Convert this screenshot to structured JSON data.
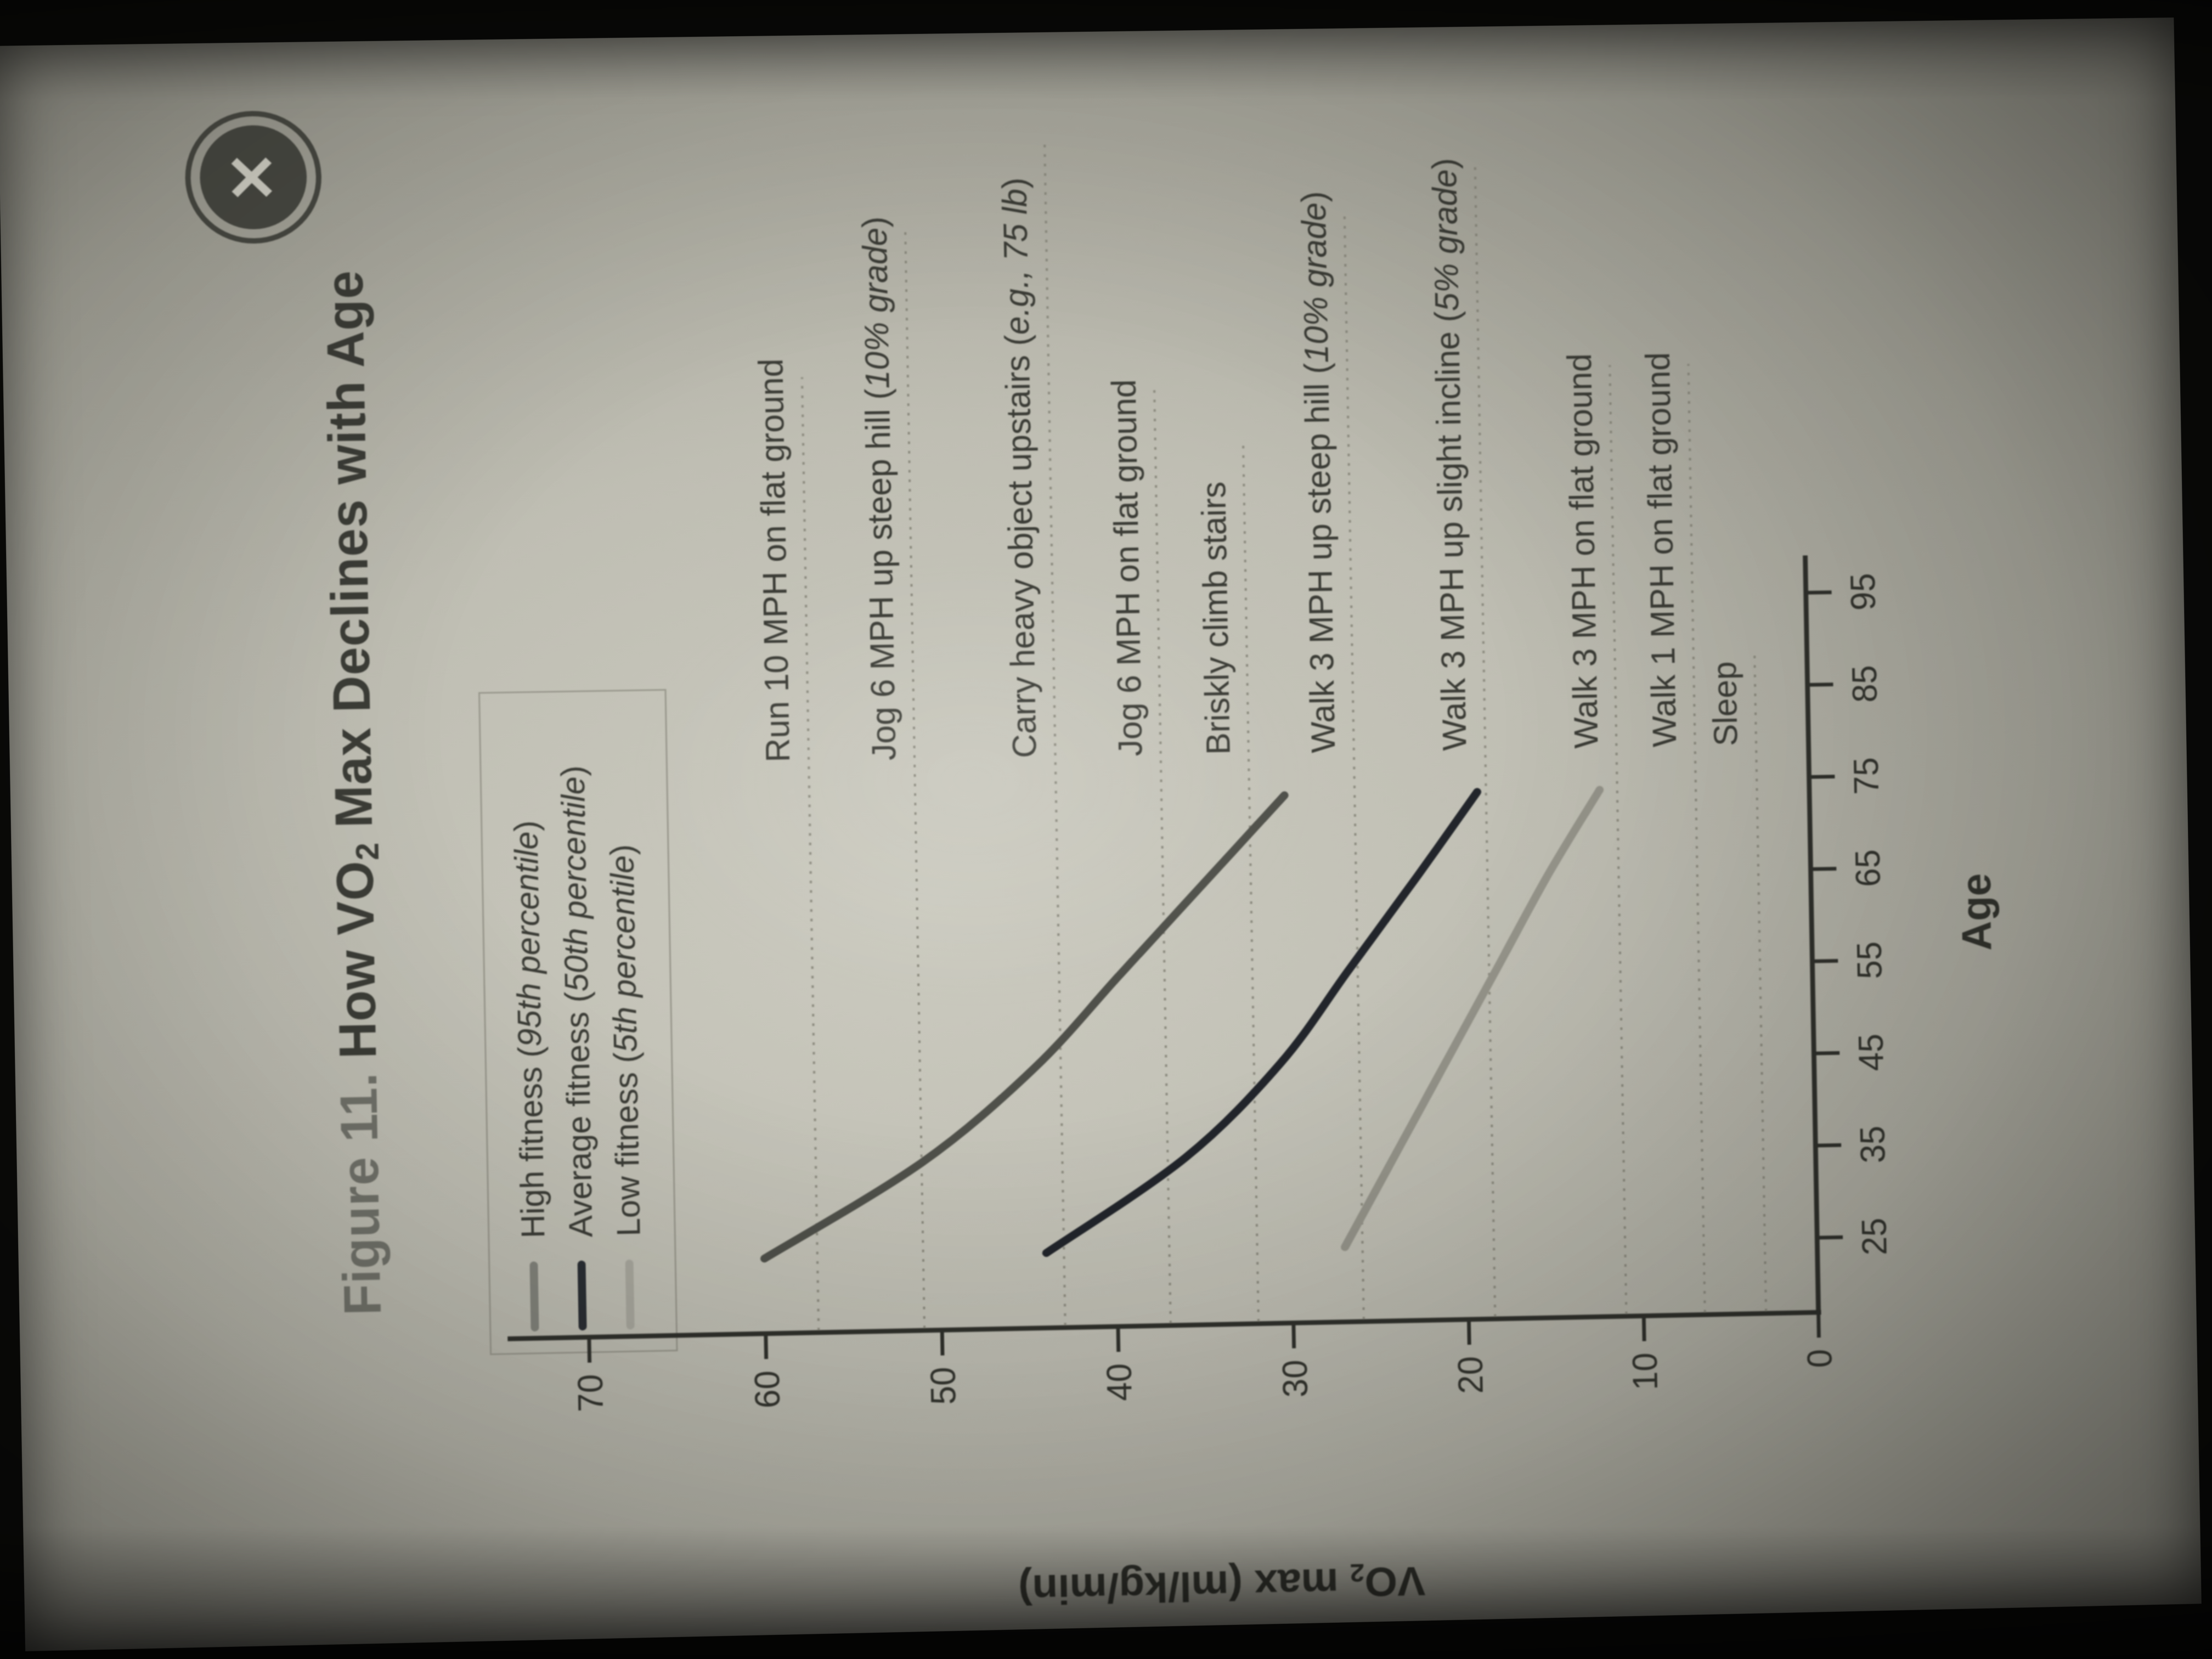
{
  "ui": {
    "close_glyph": "✕"
  },
  "title": {
    "prefix": "Figure 11.",
    "main_pre": "How VO",
    "sub": "2",
    "main_post": " Max Declines with Age"
  },
  "legend": {
    "items": [
      {
        "label": "High fitness (95th percentile)",
        "swatch_color": "#82837b"
      },
      {
        "label": "Average fitness (50th percentile)",
        "swatch_color": "#2b2f34"
      },
      {
        "label": "Low fitness (5th percentile)",
        "swatch_color": "#a8a79d"
      }
    ]
  },
  "axis": {
    "y_pre": "VO",
    "y_sub": "2",
    "y_post": " max (ml/kg/min)",
    "x_label": "Age"
  },
  "chart_data": {
    "type": "line",
    "title": "Figure 11. How VO2 Max Declines with Age",
    "xlabel": "Age",
    "ylabel": "VO2 max (ml/kg/min)",
    "xlim": [
      20,
      99
    ],
    "ylim": [
      0,
      70
    ],
    "xticks": [
      25,
      35,
      45,
      55,
      65,
      75,
      85,
      95
    ],
    "yticks": [
      0,
      10,
      20,
      30,
      40,
      50,
      60,
      70
    ],
    "grid": false,
    "legend_position": "top-left",
    "x": [
      25,
      35,
      45,
      55,
      65,
      74
    ],
    "series": [
      {
        "name": "High fitness (95th percentile)",
        "color": "#4f504a",
        "values": [
          60,
          51,
          44.5,
          39.5,
          34.5,
          30
        ]
      },
      {
        "name": "Average fitness (50th percentile)",
        "color": "#22252b",
        "values": [
          44,
          36,
          30.5,
          26.5,
          22.5,
          19
        ]
      },
      {
        "name": "Low fitness (5th percentile)",
        "color": "#95948a",
        "values": [
          27,
          24,
          21,
          18,
          15,
          12
        ]
      }
    ],
    "reference_lines": [
      {
        "label": "Run 10 MPH on flat ground",
        "value": 57
      },
      {
        "label": "Jog 6 MPH up steep hill (10% grade)",
        "value": 51
      },
      {
        "label": "Carry heavy object upstairs (e.g., 75 lb)",
        "value": 43
      },
      {
        "label": "Jog 6 MPH on flat ground",
        "value": 37
      },
      {
        "label": "Briskly climb stairs",
        "value": 32
      },
      {
        "label": "Walk 3 MPH up steep hill (10% grade)",
        "value": 26
      },
      {
        "label": "Walk 3 MPH up slight incline (5% grade)",
        "value": 18.5
      },
      {
        "label": "Walk 3 MPH on flat ground",
        "value": 11
      },
      {
        "label": "Walk 1 MPH on flat ground",
        "value": 6.5
      },
      {
        "label": "Sleep",
        "value": 3
      }
    ]
  }
}
